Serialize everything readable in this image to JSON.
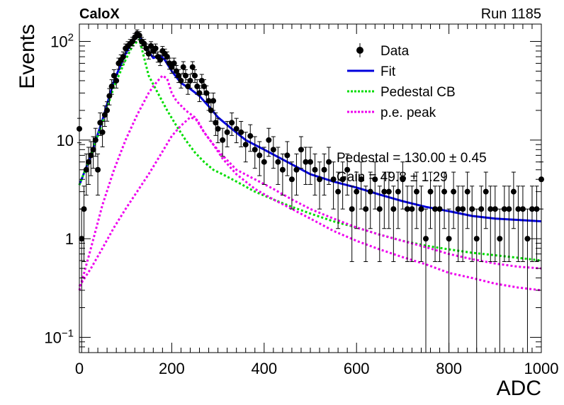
{
  "chart_data": {
    "type": "scatter",
    "experiment_label": "CaloX",
    "run_label": "Run 1185",
    "xlabel": "ADC",
    "ylabel": "Events",
    "xlim": [
      0,
      1000
    ],
    "ylim": [
      0.07,
      150
    ],
    "yscale": "log",
    "x_ticks": [
      0,
      200,
      400,
      600,
      800,
      1000
    ],
    "y_ticks": [
      {
        "value": 0.1,
        "base": "10",
        "exp": "−1"
      },
      {
        "value": 1,
        "text": "1"
      },
      {
        "value": 10,
        "text": "10"
      },
      {
        "value": 100,
        "base": "10",
        "exp": "2"
      }
    ],
    "legend_position": "top-right",
    "legend": [
      {
        "label": "Data",
        "style": "marker"
      },
      {
        "label": "Fit",
        "style": "solid",
        "color": "#0000dd"
      },
      {
        "label": "Pedestal CB",
        "style": "dotted",
        "color": "#00dd00"
      },
      {
        "label": "p.e. peak",
        "style": "dotted",
        "color": "#ee00ee"
      }
    ],
    "annotations": [
      "Pedestal = 130.00 ± 0.45",
      "Gain = 49.8 ± 1.29"
    ],
    "colors": {
      "data": "#000000",
      "fit": "#0000dd",
      "pedestal": "#00dd00",
      "pe_peak": "#ee00ee"
    },
    "series": [
      {
        "name": "Data",
        "kind": "points",
        "x": [
          0,
          5,
          10,
          15,
          20,
          25,
          30,
          35,
          40,
          45,
          50,
          55,
          60,
          65,
          70,
          75,
          80,
          85,
          90,
          95,
          100,
          105,
          110,
          115,
          120,
          125,
          130,
          135,
          140,
          145,
          150,
          155,
          160,
          165,
          170,
          175,
          180,
          185,
          190,
          195,
          200,
          205,
          210,
          215,
          220,
          225,
          230,
          235,
          240,
          245,
          250,
          255,
          260,
          265,
          270,
          275,
          280,
          285,
          290,
          295,
          300,
          310,
          320,
          330,
          340,
          350,
          360,
          370,
          380,
          390,
          400,
          410,
          420,
          430,
          440,
          450,
          460,
          470,
          480,
          490,
          500,
          510,
          520,
          530,
          540,
          550,
          560,
          570,
          580,
          590,
          600,
          610,
          620,
          630,
          640,
          650,
          660,
          670,
          680,
          690,
          700,
          710,
          720,
          730,
          740,
          750,
          760,
          770,
          780,
          790,
          800,
          810,
          820,
          830,
          840,
          850,
          860,
          870,
          880,
          890,
          900,
          910,
          920,
          930,
          940,
          950,
          960,
          970,
          980,
          990,
          1000
        ],
        "y": [
          13,
          1,
          2,
          5,
          6,
          7,
          8,
          10,
          5,
          15,
          12,
          18,
          20,
          28,
          35,
          45,
          40,
          60,
          65,
          70,
          85,
          90,
          95,
          100,
          110,
          120,
          115,
          100,
          95,
          85,
          75,
          90,
          80,
          85,
          70,
          65,
          80,
          75,
          70,
          60,
          55,
          60,
          50,
          45,
          40,
          55,
          45,
          35,
          40,
          55,
          45,
          35,
          30,
          40,
          35,
          30,
          25,
          20,
          25,
          15,
          13,
          10,
          12,
          15,
          13,
          12,
          9,
          11,
          8,
          7,
          6,
          10,
          8,
          6,
          5,
          7,
          4,
          5,
          8,
          6,
          6,
          5,
          4,
          5,
          6,
          4,
          3,
          4,
          5,
          2,
          3,
          4,
          2,
          3,
          4,
          2,
          3,
          3,
          2,
          3,
          4,
          2,
          2,
          3,
          2,
          1,
          3,
          2,
          2,
          3,
          1,
          3,
          2,
          2,
          3,
          2,
          1,
          2,
          3,
          2,
          2,
          1,
          2,
          2,
          3,
          2,
          2,
          1,
          2,
          2,
          4
        ]
      },
      {
        "name": "Fit",
        "kind": "line",
        "x": [
          0,
          25,
          50,
          75,
          100,
          115,
          130,
          145,
          160,
          175,
          185,
          200,
          220,
          240,
          260,
          280,
          300,
          330,
          360,
          400,
          450,
          500,
          550,
          600,
          650,
          700,
          750,
          800,
          850,
          900,
          950,
          1000
        ],
        "y": [
          3.5,
          7,
          16,
          40,
          75,
          100,
          115,
          85,
          68,
          72,
          65,
          50,
          38,
          33,
          28,
          22,
          17,
          13,
          10,
          8,
          6,
          4.5,
          3.8,
          3.3,
          2.8,
          2.4,
          2.1,
          1.9,
          1.7,
          1.6,
          1.55,
          1.5
        ]
      },
      {
        "name": "Pedestal CB",
        "kind": "dotted",
        "x": [
          0,
          25,
          50,
          75,
          100,
          115,
          130,
          150,
          170,
          190,
          210,
          230,
          250,
          270,
          290,
          310,
          340,
          380,
          420,
          460,
          500,
          550,
          600,
          650,
          700,
          750,
          800,
          850,
          900,
          950,
          1000
        ],
        "y": [
          3.5,
          7,
          15,
          35,
          65,
          90,
          105,
          45,
          30,
          20,
          14,
          10,
          7.5,
          6,
          5,
          4.5,
          3.8,
          3,
          2.5,
          2.1,
          1.8,
          1.5,
          1.3,
          1.1,
          0.95,
          0.85,
          0.78,
          0.72,
          0.68,
          0.64,
          0.6
        ]
      },
      {
        "name": "p.e. peak",
        "kind": "dotted",
        "x": [
          0,
          25,
          50,
          75,
          100,
          125,
          150,
          160,
          170,
          180,
          190,
          200,
          210,
          230,
          250,
          270,
          290,
          310,
          340,
          380,
          420,
          460,
          500,
          550,
          600,
          650,
          700,
          750,
          800,
          850,
          900,
          950,
          1000
        ],
        "y": [
          0.3,
          0.8,
          2.2,
          5,
          10,
          18,
          30,
          35,
          40,
          45,
          42,
          30,
          25,
          20,
          17,
          12,
          9,
          7,
          5,
          4,
          3.2,
          2.5,
          2.0,
          1.6,
          1.3,
          1.1,
          0.95,
          0.82,
          0.7,
          0.62,
          0.56,
          0.52,
          0.5
        ]
      },
      {
        "name": "p.e. peak 2",
        "kind": "dotted",
        "x": [
          0,
          25,
          50,
          75,
          100,
          125,
          150,
          175,
          200,
          220,
          240,
          255,
          270,
          290,
          310,
          340,
          380,
          420,
          460,
          500,
          550,
          600,
          650,
          700,
          750,
          800,
          850,
          900,
          950,
          1000
        ],
        "y": [
          0.33,
          0.5,
          0.8,
          1.3,
          2.0,
          3.0,
          4.5,
          7,
          11,
          14,
          17,
          16,
          12,
          9,
          6.5,
          4.5,
          3.2,
          2.5,
          2.0,
          1.6,
          1.2,
          0.95,
          0.78,
          0.65,
          0.55,
          0.45,
          0.4,
          0.35,
          0.32,
          0.3
        ]
      }
    ]
  }
}
